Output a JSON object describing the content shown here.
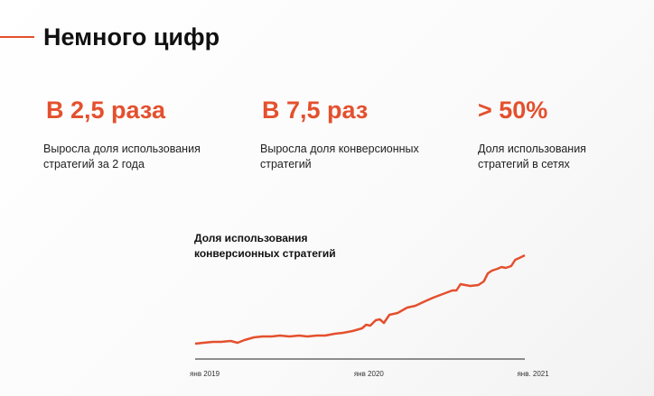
{
  "header": {
    "title": "Немного цифр"
  },
  "stats": [
    {
      "value": "В 2,5 раза",
      "text": "Выросла доля использования\nстратегий за 2 года"
    },
    {
      "value": "В 7,5 раз",
      "text": "Выросла доля конверсионных\nстратегий"
    },
    {
      "value": "> 50%",
      "text": "Доля использования\nстратегий в сетях"
    }
  ],
  "chart_data": {
    "type": "line",
    "title": "Доля использования\nконверсионных стратегий",
    "x": [
      -0.7,
      -0.1,
      0.6,
      1.2,
      1.9,
      2.4,
      2.9,
      3.6,
      4.2,
      4.9,
      5.5,
      6.2,
      6.9,
      7.5,
      8.2,
      8.8,
      9.5,
      10.1,
      10.8,
      11.5,
      11.8,
      12.1,
      12.5,
      12.8,
      13.1,
      13.5,
      14.1,
      14.8,
      15.4,
      16.1,
      16.7,
      17.4,
      18.1,
      18.4,
      18.7,
      19.4,
      20.0,
      20.4,
      20.7,
      21.0,
      21.4,
      21.7,
      22.0,
      22.4,
      22.7,
      23.0,
      23.4
    ],
    "series": [
      {
        "color": "#e4502e",
        "values": [
          17,
          18,
          19,
          19,
          20,
          18,
          21,
          24,
          25,
          25,
          26,
          25,
          26,
          25,
          26,
          26,
          28,
          29,
          31,
          34,
          38,
          37,
          43,
          44,
          40,
          49,
          51,
          57,
          59,
          64,
          68,
          72,
          76,
          76,
          83,
          81,
          82,
          86,
          95,
          98,
          100,
          102,
          101,
          103,
          110,
          112,
          115
        ]
      }
    ],
    "xlim": [
      -0.7,
      23.4
    ],
    "ylim": [
      0,
      120
    ],
    "xticks": [
      {
        "value": 0,
        "label": "янв 2019"
      },
      {
        "value": 12,
        "label": "янв 2020"
      },
      {
        "value": 24,
        "label": "янв. 2021"
      }
    ]
  }
}
